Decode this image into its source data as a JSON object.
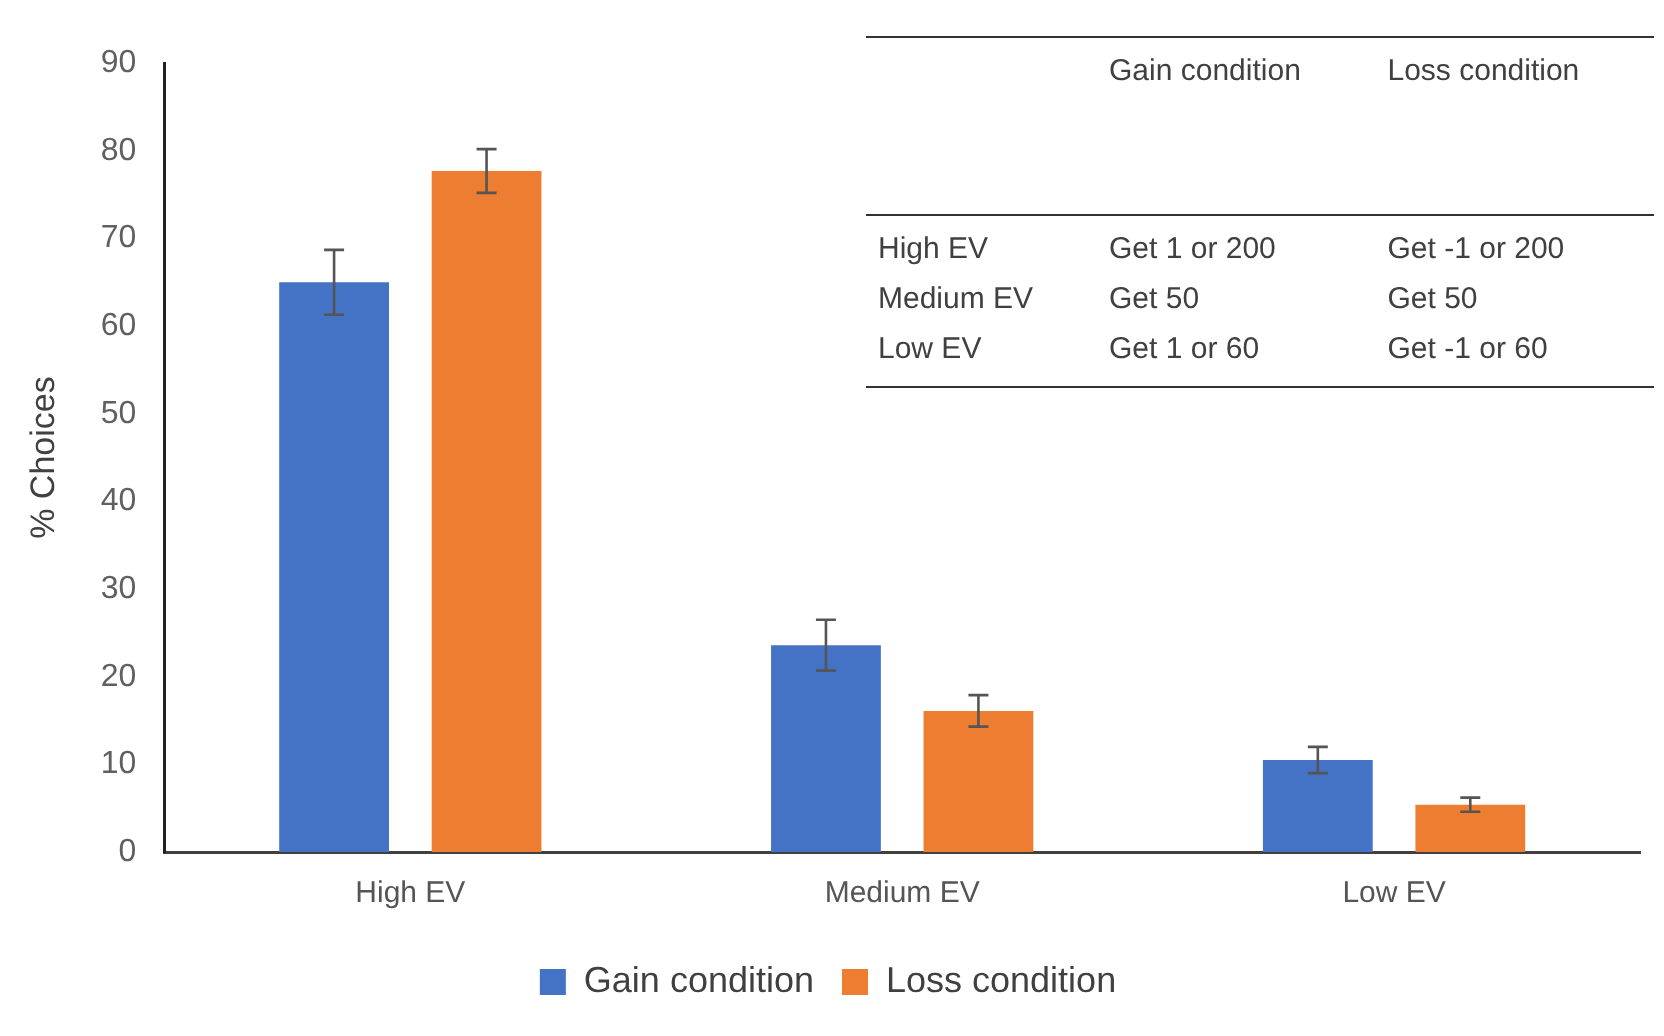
{
  "chart_data": {
    "type": "bar",
    "ylabel": "% Choices",
    "categories": [
      "High EV",
      "Medium EV",
      "Low EV"
    ],
    "series": [
      {
        "name": "Gain condition",
        "color": "#4472c4",
        "values": [
          65,
          23.6,
          10.5
        ],
        "errors": [
          3.7,
          2.9,
          1.5
        ]
      },
      {
        "name": "Loss condition",
        "color": "#ed7d31",
        "values": [
          77.7,
          16.1,
          5.4
        ],
        "errors": [
          2.5,
          1.8,
          0.8
        ]
      }
    ],
    "ylim": [
      0,
      90
    ],
    "yticks": [
      0,
      10,
      20,
      30,
      40,
      50,
      60,
      70,
      80,
      90
    ],
    "grid": false,
    "legend": "bottom",
    "annotations": [
      "Gain condition",
      "Loss condition",
      "High EV",
      "Get 1 or 200",
      "Get -1 or 200",
      "Medium EV",
      "Get 50",
      "Get 50",
      "Low EV",
      "Get 1 or 60",
      "Get -1 or 60"
    ]
  }
}
